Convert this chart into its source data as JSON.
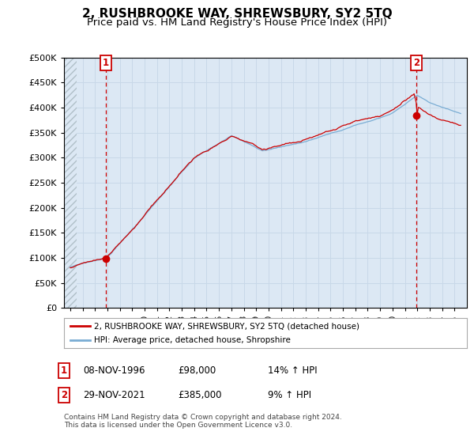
{
  "title": "2, RUSHBROOKE WAY, SHREWSBURY, SY2 5TQ",
  "subtitle": "Price paid vs. HM Land Registry's House Price Index (HPI)",
  "ylim": [
    0,
    500000
  ],
  "yticks": [
    0,
    50000,
    100000,
    150000,
    200000,
    250000,
    300000,
    350000,
    400000,
    450000,
    500000
  ],
  "sale1": {
    "date_num": 1996.86,
    "price": 98000,
    "label": "1"
  },
  "sale2": {
    "date_num": 2021.91,
    "price": 385000,
    "label": "2"
  },
  "hpi_color": "#7aadd4",
  "price_color": "#cc0000",
  "grid_color": "#c8d8e8",
  "background_color": "#ffffff",
  "plot_bg_color": "#dce8f4",
  "hatch_color": "#b0bfc8",
  "legend_label_price": "2, RUSHBROOKE WAY, SHREWSBURY, SY2 5TQ (detached house)",
  "legend_label_hpi": "HPI: Average price, detached house, Shropshire",
  "table_rows": [
    {
      "num": "1",
      "date": "08-NOV-1996",
      "price": "£98,000",
      "hpi": "14% ↑ HPI"
    },
    {
      "num": "2",
      "date": "29-NOV-2021",
      "price": "£385,000",
      "hpi": "9% ↑ HPI"
    }
  ],
  "footnote": "Contains HM Land Registry data © Crown copyright and database right 2024.\nThis data is licensed under the Open Government Licence v3.0.",
  "title_fontsize": 11,
  "subtitle_fontsize": 9.5,
  "tick_fontsize": 8,
  "xmin": 1993.5,
  "xmax": 2026.0,
  "hatch_xmax": 1994.5
}
